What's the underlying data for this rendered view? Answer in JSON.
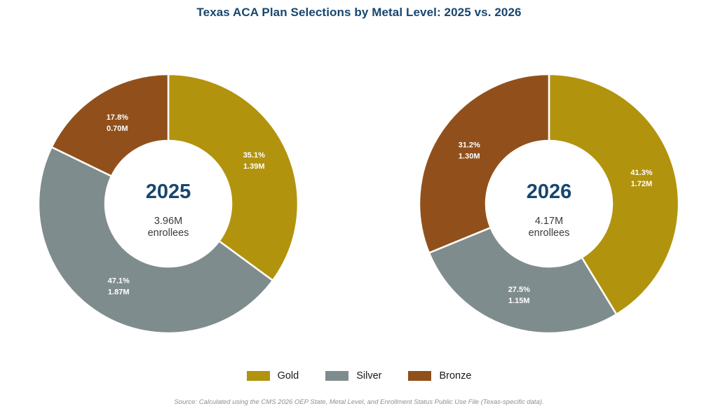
{
  "title": "Texas ACA Plan Selections by Metal Level: 2025 vs. 2026",
  "colors": {
    "gold": "#B2930E",
    "silver": "#7F8C8D",
    "bronze": "#91501B",
    "title_text": "#17466F",
    "center_year_text": "#17466F",
    "center_sub_text": "#3B3B3B",
    "slice_label_text": "#FFFFFF",
    "source_text": "#8F8F8F"
  },
  "legend": {
    "items": [
      {
        "label": "Gold",
        "color_key": "gold"
      },
      {
        "label": "Silver",
        "color_key": "silver"
      },
      {
        "label": "Bronze",
        "color_key": "bronze"
      }
    ],
    "position": "bottom"
  },
  "source_note": "Source: Calculated using the CMS 2026 OEP State, Metal Level, and Enrollment Status Public Use File (Texas-specific data).",
  "chart_data": [
    {
      "type": "pie",
      "subtype": "donut",
      "title": "2025",
      "categories": [
        "Gold",
        "Silver",
        "Bronze"
      ],
      "values_pct": [
        35.1,
        47.1,
        17.8
      ],
      "values_millions": [
        1.39,
        1.87,
        0.7
      ],
      "slice_color_keys": [
        "gold",
        "silver",
        "bronze"
      ],
      "slice_labels": [
        {
          "pct": "35.1%",
          "value": "1.39M"
        },
        {
          "pct": "47.1%",
          "value": "1.87M"
        },
        {
          "pct": "17.8%",
          "value": "0.70M"
        }
      ],
      "center": {
        "year": "2025",
        "total": "3.96M",
        "unit": "enrollees"
      },
      "start_angle": "12-o'clock",
      "direction": "clockwise",
      "legend_position": "bottom"
    },
    {
      "type": "pie",
      "subtype": "donut",
      "title": "2026",
      "categories": [
        "Gold",
        "Silver",
        "Bronze"
      ],
      "values_pct": [
        41.3,
        27.5,
        31.2
      ],
      "values_millions": [
        1.72,
        1.15,
        1.3
      ],
      "slice_color_keys": [
        "gold",
        "silver",
        "bronze"
      ],
      "slice_labels": [
        {
          "pct": "41.3%",
          "value": "1.72M"
        },
        {
          "pct": "27.5%",
          "value": "1.15M"
        },
        {
          "pct": "31.2%",
          "value": "1.30M"
        }
      ],
      "center": {
        "year": "2026",
        "total": "4.17M",
        "unit": "enrollees"
      },
      "start_angle": "12-o'clock",
      "direction": "clockwise",
      "legend_position": "bottom"
    }
  ]
}
